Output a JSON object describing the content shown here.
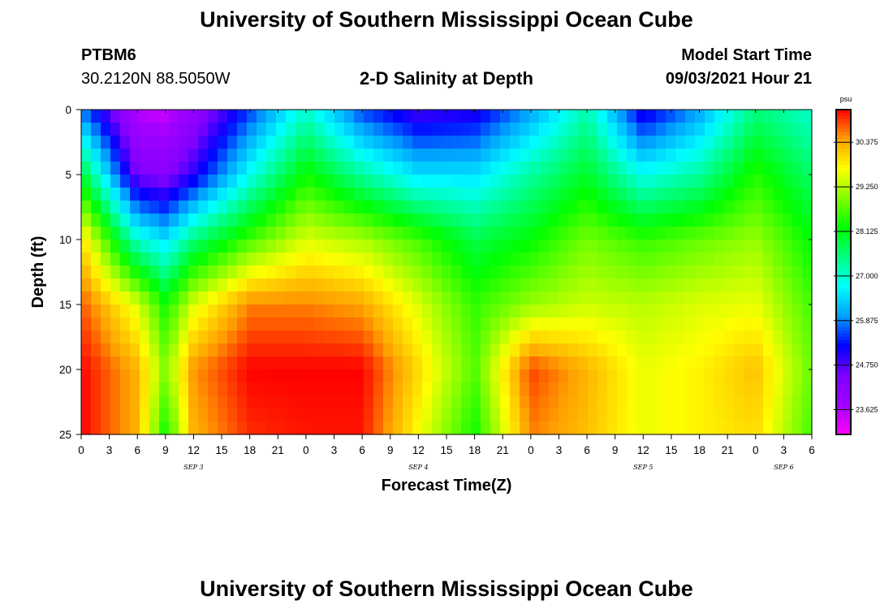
{
  "header": {
    "title": "University of Southern Mississippi Ocean Cube",
    "station_id": "PTBM6",
    "coordinates": "30.2120N  88.5050W",
    "subtitle": "2-D Salinity at Depth",
    "model_start_label": "Model Start Time",
    "model_start_value": "09/03/2021 Hour 21"
  },
  "footer": {
    "title": "University of Southern Mississippi Ocean Cube"
  },
  "chart_data": {
    "type": "heatmap",
    "title": "2-D Salinity at Depth",
    "xlabel": "Forecast Time(Z)",
    "ylabel": "Depth (ft)",
    "x_tick_labels": [
      "0",
      "3",
      "6",
      "9",
      "12",
      "15",
      "18",
      "21",
      "0",
      "3",
      "6",
      "9",
      "12",
      "15",
      "18",
      "21",
      "0",
      "3",
      "6",
      "9",
      "12",
      "15",
      "18",
      "21",
      "0",
      "3",
      "6"
    ],
    "x_range_hours": [
      0,
      78
    ],
    "date_labels": [
      {
        "label": "SEP 3",
        "hour": 12
      },
      {
        "label": "SEP 4",
        "hour": 36
      },
      {
        "label": "SEP 5",
        "hour": 60
      },
      {
        "label": "SEP 6",
        "hour": 75
      }
    ],
    "y_ticks": [
      0,
      5,
      10,
      15,
      20,
      25
    ],
    "y_range": [
      0,
      25
    ],
    "y_inverted": true,
    "colorbar": {
      "unit": "psu",
      "tick_labels": [
        "30.375",
        "29.250",
        "28.125",
        "27.000",
        "25.875",
        "24.750",
        "23.625"
      ],
      "ticks": [
        30.375,
        29.25,
        28.125,
        27.0,
        25.875,
        24.75,
        23.625
      ],
      "range": [
        23.0,
        31.2
      ],
      "colors": [
        "#ff00ff",
        "#a000ff",
        "#8000ff",
        "#0000ff",
        "#00a0ff",
        "#00ffff",
        "#00ff80",
        "#00ff00",
        "#80ff00",
        "#ffff00",
        "#ffa000",
        "#ff0000"
      ]
    },
    "hours": [
      0,
      6,
      9,
      12,
      18,
      24,
      30,
      36,
      42,
      48,
      54,
      60,
      66,
      72,
      78
    ],
    "depths_ft": [
      0,
      5,
      10,
      15,
      20,
      25
    ],
    "salinity_psu": [
      [
        25.8,
        23.5,
        23.4,
        24.0,
        25.5,
        27.0,
        25.5,
        24.8,
        25.0,
        26.0,
        27.2,
        25.0,
        26.0,
        27.5,
        27.0
      ],
      [
        28.0,
        24.5,
        24.3,
        25.0,
        26.8,
        28.3,
        27.3,
        26.5,
        26.5,
        27.3,
        28.0,
        26.8,
        27.3,
        28.4,
        27.6
      ],
      [
        30.0,
        27.0,
        26.5,
        27.5,
        28.6,
        29.5,
        29.2,
        28.6,
        27.8,
        28.2,
        28.9,
        28.5,
        28.8,
        29.1,
        28.2
      ],
      [
        30.8,
        29.5,
        28.3,
        29.5,
        30.6,
        30.6,
        30.4,
        29.5,
        28.5,
        29.1,
        29.4,
        29.3,
        29.5,
        29.6,
        28.6
      ],
      [
        31.2,
        30.3,
        29.0,
        30.5,
        31.2,
        31.2,
        31.2,
        30.0,
        28.7,
        30.9,
        30.3,
        29.6,
        29.8,
        30.2,
        28.8
      ],
      [
        31.2,
        30.3,
        28.3,
        30.3,
        31.0,
        31.1,
        31.1,
        29.7,
        28.3,
        30.6,
        30.2,
        29.6,
        29.8,
        30.0,
        28.6
      ]
    ]
  }
}
